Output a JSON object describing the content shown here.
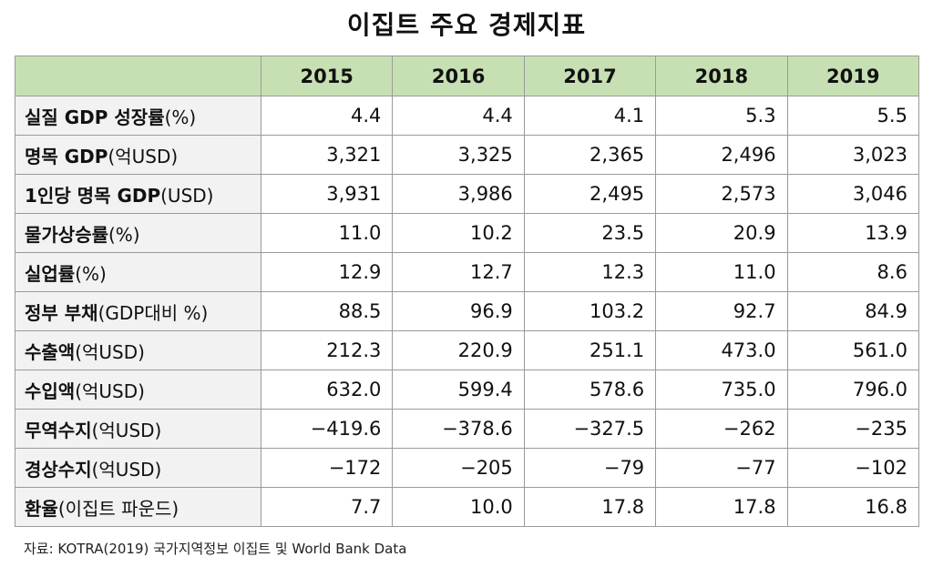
{
  "title": "이집트 주요 경제지표",
  "years": [
    "2015",
    "2016",
    "2017",
    "2018",
    "2019"
  ],
  "rows": [
    {
      "label_bold": "실질 GDP 성장률",
      "label_rest": "(%)",
      "values": [
        "4.4",
        "4.4",
        "4.1",
        "5.3",
        "5.5"
      ]
    },
    {
      "label_bold": "명목 GDP",
      "label_rest": "(억USD)",
      "values": [
        "3,321",
        "3,325",
        "2,365",
        "2,496",
        "3,023"
      ]
    },
    {
      "label_bold": "1인당 명목 GDP",
      "label_rest": "(USD)",
      "values": [
        "3,931",
        "3,986",
        "2,495",
        "2,573",
        "3,046"
      ]
    },
    {
      "label_bold": "물가상승률",
      "label_rest": "(%)",
      "values": [
        "11.0",
        "10.2",
        "23.5",
        "20.9",
        "13.9"
      ]
    },
    {
      "label_bold": "실업률",
      "label_rest": "(%)",
      "values": [
        "12.9",
        "12.7",
        "12.3",
        "11.0",
        "8.6"
      ]
    },
    {
      "label_bold": "정부 부채",
      "label_rest": "(GDP대비 %)",
      "values": [
        "88.5",
        "96.9",
        "103.2",
        "92.7",
        "84.9"
      ]
    },
    {
      "label_bold": "수출액",
      "label_rest": "(억USD)",
      "values": [
        "212.3",
        "220.9",
        "251.1",
        "473.0",
        "561.0"
      ]
    },
    {
      "label_bold": "수입액",
      "label_rest": "(억USD)",
      "values": [
        "632.0",
        "599.4",
        "578.6",
        "735.0",
        "796.0"
      ]
    },
    {
      "label_bold": "무역수지",
      "label_rest": "(억USD)",
      "values": [
        "−419.6",
        "−378.6",
        "−327.5",
        "−262",
        "−235"
      ]
    },
    {
      "label_bold": "경상수지",
      "label_rest": "(억USD)",
      "values": [
        "−172",
        "−205",
        "−79",
        "−77",
        "−102"
      ]
    },
    {
      "label_bold": "환율",
      "label_rest": "(이집트 파운드)",
      "values": [
        "7.7",
        "10.0",
        "17.8",
        "17.8",
        "16.8"
      ]
    }
  ],
  "source": "자료: KOTRA(2019) 국가지역정보 이집트 및 World Bank Data",
  "colors": {
    "header_bg": "#c7e0b3",
    "label_bg": "#f2f2f2",
    "border": "#9a9a9a"
  }
}
